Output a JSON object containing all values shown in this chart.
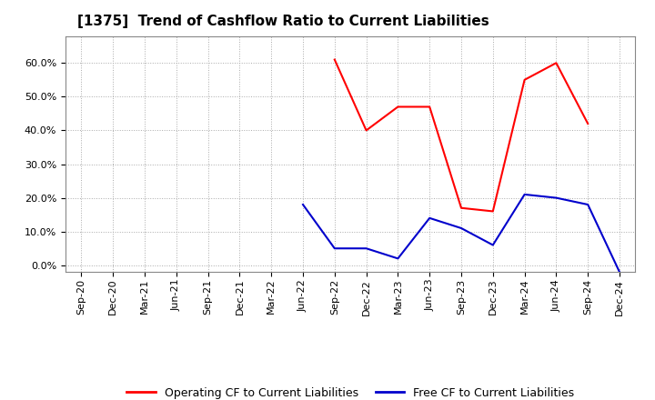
{
  "title": "[1375]  Trend of Cashflow Ratio to Current Liabilities",
  "x_labels": [
    "Sep-20",
    "Dec-20",
    "Mar-21",
    "Jun-21",
    "Sep-21",
    "Dec-21",
    "Mar-22",
    "Jun-22",
    "Sep-22",
    "Dec-22",
    "Mar-23",
    "Jun-23",
    "Sep-23",
    "Dec-23",
    "Mar-24",
    "Jun-24",
    "Sep-24",
    "Dec-24"
  ],
  "operating_cf": [
    null,
    null,
    null,
    null,
    null,
    null,
    null,
    null,
    0.61,
    0.4,
    0.47,
    0.47,
    0.17,
    0.16,
    0.55,
    0.6,
    0.42,
    null
  ],
  "free_cf": [
    null,
    null,
    null,
    null,
    null,
    null,
    null,
    0.18,
    0.05,
    0.05,
    0.02,
    0.14,
    0.11,
    0.06,
    0.21,
    0.2,
    0.18,
    -0.02
  ],
  "operating_cf_color": "#ff0000",
  "free_cf_color": "#0000cc",
  "ylim": [
    -0.02,
    0.68
  ],
  "yticks": [
    0.0,
    0.1,
    0.2,
    0.3,
    0.4,
    0.5,
    0.6
  ],
  "legend_op": "Operating CF to Current Liabilities",
  "legend_free": "Free CF to Current Liabilities",
  "bg_color": "#ffffff",
  "plot_bg_color": "#ffffff",
  "grid_color": "#aaaaaa",
  "title_fontsize": 11,
  "tick_fontsize": 8
}
